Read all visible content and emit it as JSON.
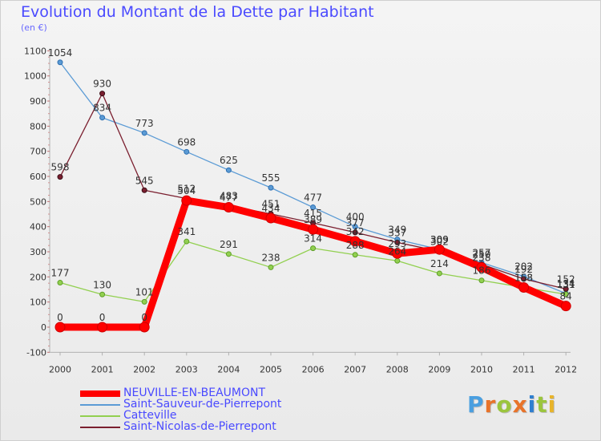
{
  "header": {
    "title": "Evolution du Montant de la Dette par Habitant",
    "subtitle": "(en €)"
  },
  "brand": {
    "name": "Proxiti",
    "letter_colors": [
      "#4a9fe0",
      "#e8732a",
      "#9bc53d",
      "#e8732a",
      "#2f7fd0",
      "#9bc53d",
      "#e8b42a"
    ]
  },
  "chart_data": {
    "type": "line",
    "title": "Evolution du Montant de la Dette par Habitant",
    "ylabel": "(en €)",
    "xlabel": "",
    "ylim": [
      -100,
      1100
    ],
    "yticks": [
      -100,
      0,
      100,
      200,
      300,
      400,
      500,
      600,
      700,
      800,
      900,
      1000,
      1100
    ],
    "categories": [
      "2000",
      "2001",
      "2002",
      "2003",
      "2004",
      "2005",
      "2006",
      "2007",
      "2008",
      "2009",
      "2010",
      "2011",
      "2012"
    ],
    "grid": false,
    "legend_position": "bottom-left",
    "series": [
      {
        "name": "Saint-Sauveur-de-Pierrepont",
        "color": "#5b9bd5",
        "values": [
          1054,
          834,
          773,
          698,
          625,
          555,
          477,
          400,
          349,
          309,
          257,
          202,
          134
        ]
      },
      {
        "name": "Catteville",
        "color": "#92d050",
        "values": [
          177,
          130,
          101,
          341,
          291,
          238,
          314,
          288,
          264,
          214,
          186,
          158,
          131
        ]
      },
      {
        "name": "Saint-Nicolas-de-Pierrepont",
        "color": "#7b1f2f",
        "values": [
          598,
          930,
          545,
          512,
          483,
          451,
          415,
          377,
          337,
          302,
          250,
          192,
          152
        ]
      },
      {
        "name": "NEUVILLE-EN-BEAUMONT",
        "color": "#ff0000",
        "values": [
          0,
          0,
          0,
          504,
          477,
          434,
          389,
          342,
          293,
          309,
          238,
          158,
          84
        ]
      }
    ],
    "legend_order": [
      "NEUVILLE-EN-BEAUMONT",
      "Saint-Sauveur-de-Pierrepont",
      "Catteville",
      "Saint-Nicolas-de-Pierrepont"
    ]
  }
}
